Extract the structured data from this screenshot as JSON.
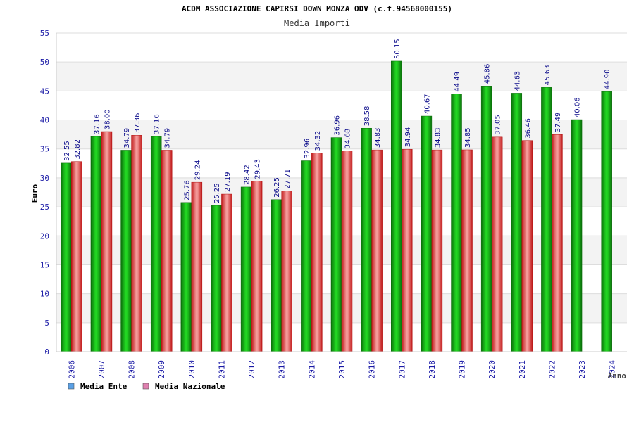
{
  "chart_data": {
    "type": "bar",
    "title": "ACDM ASSOCIAZIONE CAPIRSI DOWN MONZA ODV (c.f.94568000155)",
    "subtitle": "Media Importi",
    "xlabel": "Anno",
    "ylabel": "Euro",
    "ylim": [
      0,
      55
    ],
    "yticks": [
      "0",
      "5",
      "10",
      "15",
      "20",
      "25",
      "30",
      "35",
      "40",
      "45",
      "50",
      "55"
    ],
    "grid": true,
    "legend_position": "bottom-left",
    "categories": [
      "2006",
      "2007",
      "2008",
      "2009",
      "2010",
      "2011",
      "2012",
      "2013",
      "2014",
      "2015",
      "2016",
      "2017",
      "2018",
      "2019",
      "2020",
      "2021",
      "2022",
      "2023",
      "2024"
    ],
    "series": [
      {
        "name": "Media Ente",
        "color": "#11b311",
        "legend_color": "#5aa0e6",
        "values": [
          32.55,
          37.16,
          34.79,
          37.16,
          25.76,
          25.25,
          28.42,
          26.25,
          32.96,
          36.96,
          38.58,
          50.15,
          40.67,
          44.49,
          45.86,
          44.63,
          45.63,
          40.06,
          44.9
        ],
        "labels": [
          "32.55",
          "37.16",
          "34.79",
          "37.16",
          "25.76",
          "25.25",
          "28.42",
          "26.25",
          "32.96",
          "36.96",
          "38.58",
          "50.15",
          "40.67",
          "44.49",
          "45.86",
          "44.63",
          "45.63",
          "40.06",
          "44.90"
        ]
      },
      {
        "name": "Media Nazionale",
        "color": "#e83a3a",
        "legend_color": "#e080b0",
        "values": [
          32.82,
          38.0,
          37.36,
          34.79,
          29.24,
          27.19,
          29.43,
          27.71,
          34.32,
          34.68,
          34.83,
          34.94,
          34.83,
          34.85,
          37.05,
          36.46,
          37.49,
          null,
          null
        ],
        "labels": [
          "32.82",
          "38.00",
          "37.36",
          "34.79",
          "29.24",
          "27.19",
          "29.43",
          "27.71",
          "34.32",
          "34.68",
          "34.83",
          "34.94",
          "34.83",
          "34.85",
          "37.05",
          "36.46",
          "37.49",
          null,
          null
        ]
      }
    ]
  }
}
